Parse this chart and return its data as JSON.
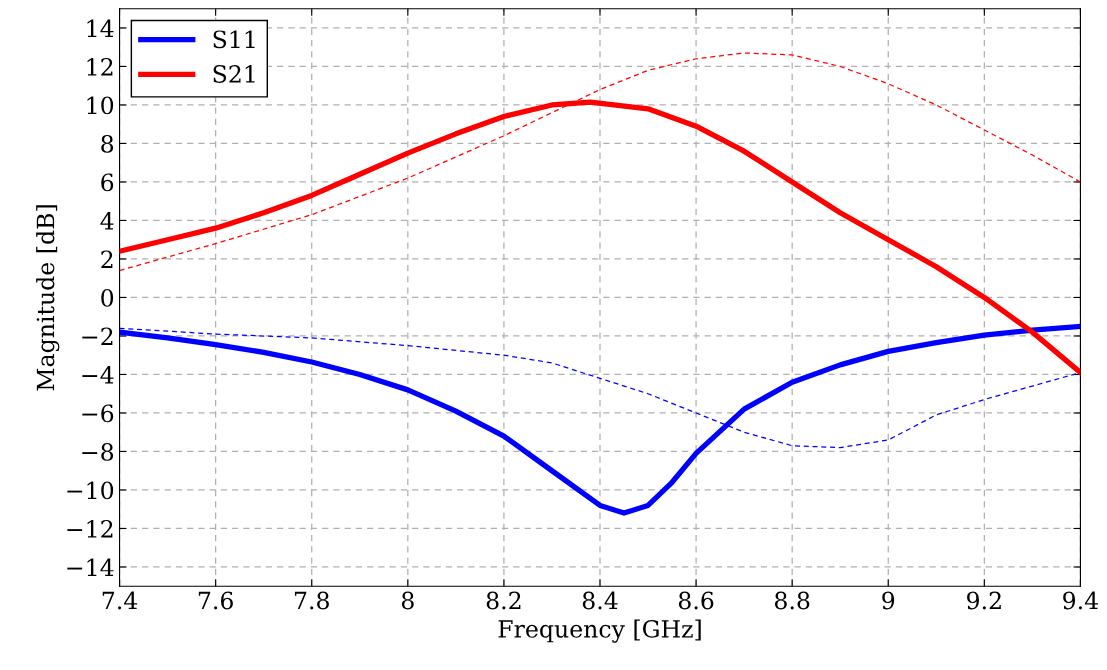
{
  "chart_data": {
    "type": "line",
    "xlabel": "Frequency [GHz]",
    "ylabel": "Magnitude [dB]",
    "xlim": [
      7.4,
      9.4
    ],
    "xticks": [
      7.4,
      7.6,
      7.8,
      8,
      8.2,
      8.4,
      8.6,
      8.8,
      9,
      9.2,
      9.4
    ],
    "ylim": [
      -15,
      15
    ],
    "yticks": [
      {
        "value": -14,
        "label": "−14"
      },
      {
        "value": -12,
        "label": "−12"
      },
      {
        "value": -10,
        "label": "−10"
      },
      {
        "value": -8,
        "label": "−8"
      },
      {
        "value": -6,
        "label": "−6"
      },
      {
        "value": -4,
        "label": "−4"
      },
      {
        "value": -2,
        "label": "−2"
      },
      0,
      2,
      4,
      6,
      8,
      10,
      12,
      14
    ],
    "grid": true,
    "legend": "top left",
    "series": [
      {
        "name": "S11",
        "color": "#0000ff",
        "line_style": "solid",
        "x": [
          7.4,
          7.5,
          7.6,
          7.7,
          7.8,
          7.9,
          8.0,
          8.1,
          8.2,
          8.3,
          8.4,
          8.45,
          8.5,
          8.55,
          8.6,
          8.7,
          8.8,
          8.9,
          9.0,
          9.1,
          9.2,
          9.3,
          9.4
        ],
        "values": [
          -1.8,
          -2.1,
          -2.45,
          -2.85,
          -3.35,
          -4.0,
          -4.8,
          -5.9,
          -7.2,
          -9.0,
          -10.8,
          -11.2,
          -10.8,
          -9.6,
          -8.1,
          -5.8,
          -4.4,
          -3.5,
          -2.8,
          -2.35,
          -1.95,
          -1.7,
          -1.5
        ]
      },
      {
        "name": "S21",
        "color": "#ff0000",
        "line_style": "solid",
        "x": [
          7.4,
          7.5,
          7.6,
          7.7,
          7.8,
          7.9,
          8.0,
          8.1,
          8.2,
          8.3,
          8.38,
          8.5,
          8.6,
          8.7,
          8.8,
          8.9,
          9.0,
          9.1,
          9.2,
          9.3,
          9.4
        ],
        "values": [
          2.4,
          3.0,
          3.6,
          4.4,
          5.3,
          6.4,
          7.5,
          8.5,
          9.4,
          10.0,
          10.15,
          9.8,
          8.9,
          7.6,
          6.0,
          4.4,
          3.0,
          1.6,
          0.0,
          -1.8,
          -3.9
        ]
      },
      {
        "color": "#0000ff",
        "line_style": "dashed",
        "x": [
          7.4,
          7.6,
          7.8,
          8.0,
          8.2,
          8.3,
          8.4,
          8.5,
          8.6,
          8.7,
          8.8,
          8.9,
          9.0,
          9.1,
          9.2,
          9.3,
          9.4
        ],
        "values": [
          -1.6,
          -1.9,
          -2.1,
          -2.5,
          -3.0,
          -3.4,
          -4.2,
          -5.0,
          -6.0,
          -7.0,
          -7.7,
          -7.8,
          -7.4,
          -6.1,
          -5.3,
          -4.6,
          -3.9
        ]
      },
      {
        "color": "#ff0000",
        "line_style": "dashed",
        "x": [
          7.4,
          7.6,
          7.8,
          8.0,
          8.2,
          8.35,
          8.4,
          8.5,
          8.6,
          8.7,
          8.8,
          8.9,
          9.0,
          9.1,
          9.2,
          9.3,
          9.4
        ],
        "values": [
          1.4,
          2.8,
          4.3,
          6.2,
          8.4,
          10.2,
          10.8,
          11.8,
          12.4,
          12.7,
          12.6,
          12.0,
          11.1,
          10.0,
          8.7,
          7.4,
          6.0
        ]
      }
    ]
  }
}
